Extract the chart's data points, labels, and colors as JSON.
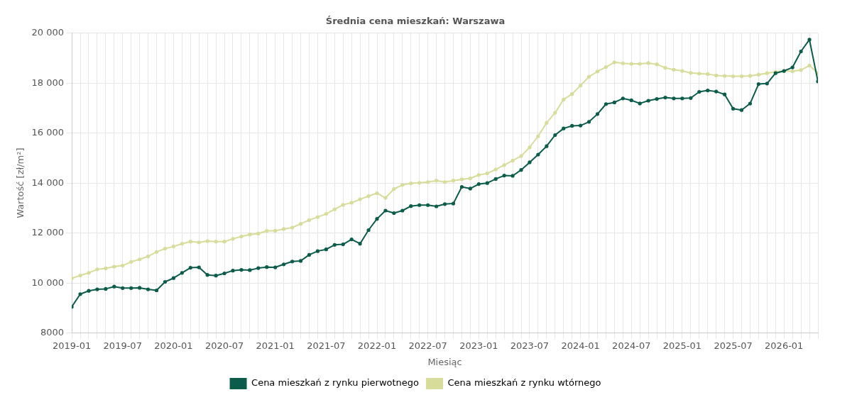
{
  "chart_data": {
    "type": "line",
    "title": "Średnia cena mieszkań: Warszawa",
    "xlabel": "Miesiąc",
    "ylabel": "Wartość [zł/m²]",
    "x": [
      "2019-01",
      "2019-02",
      "2019-03",
      "2019-04",
      "2019-05",
      "2019-06",
      "2019-07",
      "2019-08",
      "2019-09",
      "2019-10",
      "2019-11",
      "2019-12",
      "2020-01",
      "2020-02",
      "2020-03",
      "2020-04",
      "2020-05",
      "2020-06",
      "2020-07",
      "2020-08",
      "2020-09",
      "2020-10",
      "2020-11",
      "2020-12",
      "2021-01",
      "2021-02",
      "2021-03",
      "2021-04",
      "2021-05",
      "2021-06",
      "2021-07",
      "2021-08",
      "2021-09",
      "2021-10",
      "2021-11",
      "2021-12",
      "2022-01",
      "2022-02",
      "2022-03",
      "2022-04",
      "2022-05",
      "2022-06",
      "2022-07",
      "2022-08",
      "2022-09",
      "2022-10",
      "2022-11",
      "2022-12",
      "2023-01",
      "2023-02",
      "2023-03",
      "2023-04",
      "2023-05",
      "2023-06",
      "2023-07",
      "2023-08",
      "2023-09",
      "2023-10",
      "2023-11",
      "2023-12",
      "2024-01",
      "2024-02",
      "2024-03",
      "2024-04",
      "2024-05",
      "2024-06",
      "2024-07",
      "2024-08",
      "2024-09",
      "2024-10",
      "2024-11",
      "2024-12",
      "2025-01",
      "2025-02",
      "2025-03",
      "2025-04",
      "2025-05",
      "2025-06",
      "2025-07",
      "2025-08",
      "2025-09",
      "2025-10",
      "2025-11",
      "2025-12",
      "2026-01",
      "2026-02",
      "2026-03",
      "2026-04",
      "2026-05"
    ],
    "series": [
      {
        "name": "Cena mieszkań z rynku pierwotnego",
        "color": "#0b5c4a",
        "values": [
          9050,
          9560,
          9690,
          9750,
          9770,
          9860,
          9800,
          9800,
          9810,
          9750,
          9710,
          10050,
          10200,
          10410,
          10615,
          10630,
          10330,
          10300,
          10390,
          10500,
          10530,
          10520,
          10600,
          10640,
          10630,
          10750,
          10865,
          10890,
          11130,
          11280,
          11350,
          11530,
          11550,
          11750,
          11575,
          12120,
          12570,
          12900,
          12800,
          12900,
          13080,
          13120,
          13120,
          13070,
          13160,
          13180,
          13850,
          13780,
          13960,
          14000,
          14165,
          14300,
          14290,
          14525,
          14830,
          15140,
          15475,
          15920,
          16185,
          16290,
          16300,
          16450,
          16760,
          17160,
          17225,
          17385,
          17310,
          17185,
          17295,
          17365,
          17420,
          17385,
          17385,
          17400,
          17650,
          17705,
          17660,
          17545,
          16975,
          16920,
          17180,
          17960,
          17980,
          18395,
          18485,
          18625,
          19265,
          19735,
          18065
        ]
      },
      {
        "name": "Cena mieszkań z rynku wtórnego",
        "color": "#d8dc9a",
        "values": [
          10190,
          10305,
          10410,
          10550,
          10590,
          10660,
          10700,
          10850,
          10950,
          11070,
          11245,
          11380,
          11465,
          11575,
          11660,
          11630,
          11680,
          11660,
          11660,
          11770,
          11865,
          11945,
          11980,
          12090,
          12095,
          12165,
          12220,
          12370,
          12520,
          12640,
          12770,
          12950,
          13130,
          13215,
          13350,
          13480,
          13595,
          13410,
          13765,
          13925,
          13990,
          14010,
          14040,
          14100,
          14040,
          14100,
          14150,
          14190,
          14325,
          14385,
          14545,
          14720,
          14900,
          15080,
          15430,
          15875,
          16410,
          16810,
          17340,
          17560,
          17900,
          18250,
          18465,
          18640,
          18830,
          18790,
          18770,
          18770,
          18800,
          18750,
          18610,
          18535,
          18485,
          18405,
          18380,
          18360,
          18305,
          18285,
          18270,
          18270,
          18290,
          18340,
          18395,
          18450,
          18485,
          18470,
          18520,
          18700,
          18395
        ]
      }
    ],
    "xlim": [
      "2019-01",
      "2026-05"
    ],
    "xticks": [
      "2019-01",
      {
        "value": "2019-02",
        "label": null
      },
      {
        "value": "2019-03",
        "label": null
      },
      {
        "value": "2019-04",
        "label": null
      },
      {
        "value": "2019-05",
        "label": null
      },
      {
        "value": "2019-06",
        "label": null
      },
      "2019-07",
      {
        "value": "2019-08",
        "label": null
      },
      {
        "value": "2019-09",
        "label": null
      },
      {
        "value": "2019-10",
        "label": null
      },
      {
        "value": "2019-11",
        "label": null
      },
      {
        "value": "2019-12",
        "label": null
      },
      "2020-01",
      {
        "value": "2020-02",
        "label": null
      },
      {
        "value": "2020-03",
        "label": null
      },
      {
        "value": "2020-04",
        "label": null
      },
      {
        "value": "2020-05",
        "label": null
      },
      {
        "value": "2020-06",
        "label": null
      },
      "2020-07",
      {
        "value": "2020-08",
        "label": null
      },
      {
        "value": "2020-09",
        "label": null
      },
      {
        "value": "2020-10",
        "label": null
      },
      {
        "value": "2020-11",
        "label": null
      },
      {
        "value": "2020-12",
        "label": null
      },
      "2021-01",
      {
        "value": "2021-02",
        "label": null
      },
      {
        "value": "2021-03",
        "label": null
      },
      {
        "value": "2021-04",
        "label": null
      },
      {
        "value": "2021-05",
        "label": null
      },
      {
        "value": "2021-06",
        "label": null
      },
      "2021-07",
      {
        "value": "2021-08",
        "label": null
      },
      {
        "value": "2021-09",
        "label": null
      },
      {
        "value": "2021-10",
        "label": null
      },
      {
        "value": "2021-11",
        "label": null
      },
      {
        "value": "2021-12",
        "label": null
      },
      "2022-01",
      {
        "value": "2022-02",
        "label": null
      },
      {
        "value": "2022-03",
        "label": null
      },
      {
        "value": "2022-04",
        "label": null
      },
      {
        "value": "2022-05",
        "label": null
      },
      {
        "value": "2022-06",
        "label": null
      },
      "2022-07",
      {
        "value": "2022-08",
        "label": null
      },
      {
        "value": "2022-09",
        "label": null
      },
      {
        "value": "2022-10",
        "label": null
      },
      {
        "value": "2022-11",
        "label": null
      },
      {
        "value": "2022-12",
        "label": null
      },
      "2023-01",
      {
        "value": "2023-02",
        "label": null
      },
      {
        "value": "2023-03",
        "label": null
      },
      {
        "value": "2023-04",
        "label": null
      },
      {
        "value": "2023-05",
        "label": null
      },
      {
        "value": "2023-06",
        "label": null
      },
      "2023-07",
      {
        "value": "2023-08",
        "label": null
      },
      {
        "value": "2023-09",
        "label": null
      },
      {
        "value": "2023-10",
        "label": null
      },
      {
        "value": "2023-11",
        "label": null
      },
      {
        "value": "2023-12",
        "label": null
      },
      "2024-01",
      {
        "value": "2024-02",
        "label": null
      },
      {
        "value": "2024-03",
        "label": null
      },
      {
        "value": "2024-04",
        "label": null
      },
      {
        "value": "2024-05",
        "label": null
      },
      {
        "value": "2024-06",
        "label": null
      },
      "2024-07",
      {
        "value": "2024-08",
        "label": null
      },
      {
        "value": "2024-09",
        "label": null
      },
      {
        "value": "2024-10",
        "label": null
      },
      {
        "value": "2024-11",
        "label": null
      },
      {
        "value": "2024-12",
        "label": null
      },
      "2025-01",
      {
        "value": "2025-02",
        "label": null
      },
      {
        "value": "2025-03",
        "label": null
      },
      {
        "value": "2025-04",
        "label": null
      },
      {
        "value": "2025-05",
        "label": null
      },
      {
        "value": "2025-06",
        "label": null
      },
      "2025-07",
      {
        "value": "2025-08",
        "label": null
      },
      {
        "value": "2025-09",
        "label": null
      },
      {
        "value": "2025-10",
        "label": null
      },
      {
        "value": "2025-11",
        "label": null
      },
      {
        "value": "2025-12",
        "label": null
      },
      "2026-01",
      {
        "value": "2026-02",
        "label": null
      },
      {
        "value": "2026-03",
        "label": null
      },
      {
        "value": "2026-04",
        "label": null
      },
      {
        "value": "2026-05",
        "label": null
      }
    ],
    "ylim": [
      8000,
      20000
    ],
    "yticks": [
      8000,
      {
        "value": 10000,
        "label": "10 000"
      },
      {
        "value": 12000,
        "label": "12 000"
      },
      {
        "value": 14000,
        "label": "14 000"
      },
      {
        "value": 16000,
        "label": "16 000"
      },
      {
        "value": 18000,
        "label": "18 000"
      },
      {
        "value": 20000,
        "label": "20 000"
      }
    ],
    "grid": true,
    "legend": "bottom",
    "marker": "circle",
    "line_style": "solid"
  }
}
